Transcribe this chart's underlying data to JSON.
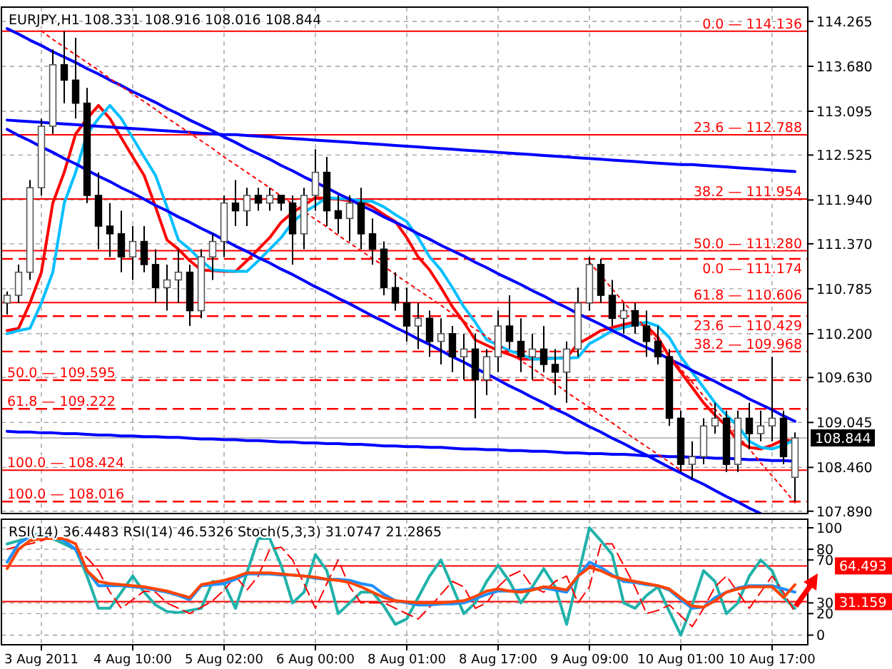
{
  "chart_data": [
    {
      "type": "candlestick",
      "title": "EURJPY,H1  108.331 108.916 108.016 108.844",
      "categories": [
        null,
        null,
        null,
        null,
        null,
        null,
        null,
        null,
        null,
        null,
        null,
        null,
        null,
        null,
        null,
        null,
        null,
        null,
        null,
        null,
        null,
        null,
        null,
        null,
        null,
        null,
        null,
        null,
        null,
        null,
        null,
        null,
        null,
        null,
        null,
        null,
        null,
        null,
        null,
        null,
        null,
        null,
        null,
        null,
        null,
        null,
        null,
        null,
        null,
        null,
        null,
        null,
        null,
        null,
        null,
        null,
        null,
        null,
        null,
        null,
        null,
        null,
        null,
        null,
        null,
        null,
        null,
        null,
        null,
        null
      ],
      "ohlc": [
        [
          110.6,
          110.75,
          110.45,
          110.7
        ],
        [
          110.7,
          111.1,
          110.6,
          111.0
        ],
        [
          111.0,
          112.2,
          110.9,
          112.1
        ],
        [
          112.1,
          113.0,
          112.0,
          112.9
        ],
        [
          112.9,
          113.9,
          112.8,
          113.7
        ],
        [
          113.7,
          114.136,
          113.2,
          113.5
        ],
        [
          113.5,
          114.05,
          113.0,
          113.2
        ],
        [
          113.2,
          113.4,
          111.9,
          112.0
        ],
        [
          112.0,
          112.3,
          111.3,
          111.6
        ],
        [
          111.6,
          111.9,
          111.2,
          111.5
        ],
        [
          111.5,
          111.8,
          111.0,
          111.2
        ],
        [
          111.2,
          111.6,
          110.9,
          111.4
        ],
        [
          111.4,
          111.6,
          111.0,
          111.1
        ],
        [
          111.1,
          111.3,
          110.6,
          110.8
        ],
        [
          110.8,
          111.1,
          110.5,
          110.9
        ],
        [
          110.9,
          111.3,
          110.6,
          111.0
        ],
        [
          111.0,
          111.1,
          110.3,
          110.5
        ],
        [
          110.5,
          111.3,
          110.4,
          111.2
        ],
        [
          111.2,
          111.5,
          110.9,
          111.4
        ],
        [
          111.4,
          112.0,
          111.2,
          111.9
        ],
        [
          111.9,
          112.2,
          111.6,
          111.8
        ],
        [
          111.8,
          112.1,
          111.6,
          112.0
        ],
        [
          112.0,
          112.1,
          111.8,
          111.9
        ],
        [
          111.9,
          112.1,
          111.8,
          112.0
        ],
        [
          112.0,
          112.0,
          111.8,
          111.9
        ],
        [
          111.9,
          112.0,
          111.1,
          111.5
        ],
        [
          111.5,
          112.1,
          111.3,
          112.0
        ],
        [
          112.0,
          112.6,
          111.8,
          112.3
        ],
        [
          112.3,
          112.5,
          111.6,
          111.8
        ],
        [
          111.8,
          112.0,
          111.5,
          111.7
        ],
        [
          111.7,
          112.0,
          111.4,
          111.9
        ],
        [
          111.9,
          112.1,
          111.3,
          111.5
        ],
        [
          111.5,
          111.7,
          111.1,
          111.3
        ],
        [
          111.3,
          111.4,
          110.7,
          110.8
        ],
        [
          110.8,
          111.0,
          110.5,
          110.6
        ],
        [
          110.6,
          110.8,
          110.1,
          110.3
        ],
        [
          110.3,
          110.6,
          110.0,
          110.4
        ],
        [
          110.4,
          110.5,
          109.9,
          110.1
        ],
        [
          110.1,
          110.4,
          109.8,
          110.2
        ],
        [
          110.2,
          110.3,
          109.7,
          109.9
        ],
        [
          109.9,
          110.2,
          109.6,
          110.0
        ],
        [
          110.0,
          110.2,
          109.1,
          109.6
        ],
        [
          109.6,
          110.0,
          109.4,
          109.9
        ],
        [
          109.9,
          110.5,
          109.7,
          110.3
        ],
        [
          110.3,
          110.7,
          110.0,
          110.1
        ],
        [
          110.1,
          110.4,
          109.7,
          109.9
        ],
        [
          109.9,
          110.2,
          109.6,
          110.0
        ],
        [
          110.0,
          110.3,
          109.7,
          109.8
        ],
        [
          109.8,
          110.0,
          109.4,
          109.7
        ],
        [
          109.7,
          110.1,
          109.3,
          110.0
        ],
        [
          110.0,
          110.8,
          109.9,
          110.6
        ],
        [
          110.6,
          111.2,
          110.5,
          111.1
        ],
        [
          111.1,
          111.174,
          110.6,
          110.7
        ],
        [
          110.7,
          110.9,
          110.3,
          110.4
        ],
        [
          110.4,
          110.6,
          110.2,
          110.5
        ],
        [
          110.5,
          110.6,
          110.2,
          110.3
        ],
        [
          110.3,
          110.5,
          109.9,
          110.1
        ],
        [
          110.1,
          110.3,
          109.8,
          109.9
        ],
        [
          109.9,
          110.0,
          109.0,
          109.1
        ],
        [
          109.1,
          109.2,
          108.4,
          108.5
        ],
        [
          108.5,
          108.8,
          108.3,
          108.6
        ],
        [
          108.6,
          109.1,
          108.5,
          109.0
        ],
        [
          109.0,
          109.3,
          108.9,
          109.1
        ],
        [
          109.1,
          109.2,
          108.4,
          108.5
        ],
        [
          108.5,
          109.2,
          108.4,
          109.1
        ],
        [
          109.1,
          109.3,
          108.7,
          108.9
        ],
        [
          108.9,
          109.2,
          108.8,
          109.0
        ],
        [
          109.0,
          109.9,
          108.8,
          109.1
        ],
        [
          109.1,
          109.2,
          108.5,
          108.6
        ],
        [
          108.331,
          108.916,
          108.016,
          108.844
        ]
      ],
      "ylim": [
        107.86,
        114.45
      ],
      "yticks": [
        {
          "value": 114.265,
          "label": "114.265"
        },
        {
          "value": 113.68,
          "label": "113.680"
        },
        {
          "value": 113.095,
          "label": "113.095"
        },
        {
          "value": 112.525,
          "label": "112.525"
        },
        {
          "value": 111.94,
          "label": "111.940"
        },
        {
          "value": 111.37,
          "label": "111.370"
        },
        {
          "value": 110.785,
          "label": "110.785"
        },
        {
          "value": 110.2,
          "label": "110.200"
        },
        {
          "value": 109.63,
          "label": "109.630"
        },
        {
          "value": 109.045,
          "label": "109.045"
        },
        {
          "value": 108.46,
          "label": "108.460"
        },
        {
          "value": 107.89,
          "label": "107.890"
        }
      ],
      "tick_labels": "y",
      "grid": true,
      "series": [
        {
          "type": "line",
          "color": "#ff0000",
          "values": [
            110.24,
            110.27,
            110.6,
            111.0,
            111.9,
            112.3,
            112.8,
            113.0,
            113.17,
            113.0,
            112.75,
            112.5,
            112.26,
            111.85,
            111.42,
            111.3,
            111.15,
            111.03,
            111.02,
            111.01,
            111.01,
            111.15,
            111.3,
            111.45,
            111.65,
            111.78,
            111.87,
            111.97,
            111.96,
            111.95,
            111.93,
            111.92,
            111.85,
            111.75,
            111.66,
            111.45,
            111.2,
            111.03,
            110.8,
            110.55,
            110.35,
            110.12,
            110.05,
            109.98,
            109.93,
            109.87,
            109.87,
            109.88,
            109.88,
            109.89,
            110.07,
            110.15,
            110.24,
            110.28,
            110.32,
            110.35,
            110.3,
            110.15,
            109.9,
            109.7,
            109.5,
            109.3,
            109.14,
            109.0,
            108.8,
            108.72,
            108.7,
            108.75,
            108.82,
            108.8
          ]
        },
        {
          "type": "line",
          "color": "#00bfff",
          "values": [
            110.2,
            110.24,
            110.27,
            110.6,
            111.0,
            111.9,
            112.3,
            112.8,
            113.0,
            113.17,
            113.0,
            112.75,
            112.5,
            112.26,
            111.85,
            111.42,
            111.3,
            111.15,
            111.03,
            111.02,
            111.01,
            111.01,
            111.15,
            111.3,
            111.45,
            111.65,
            111.78,
            111.87,
            111.97,
            111.96,
            111.95,
            111.93,
            111.92,
            111.85,
            111.75,
            111.66,
            111.45,
            111.2,
            111.03,
            110.8,
            110.55,
            110.35,
            110.12,
            110.05,
            109.98,
            109.93,
            109.87,
            109.87,
            109.88,
            109.88,
            109.89,
            110.07,
            110.15,
            110.24,
            110.28,
            110.32,
            110.35,
            110.3,
            110.15,
            109.9,
            109.7,
            109.5,
            109.3,
            109.14,
            109.0,
            108.8,
            108.72,
            108.7,
            108.75,
            108.82
          ]
        },
        {
          "type": "line",
          "color": "#0000ff",
          "values": [
            114.17,
            114.1,
            114.02,
            113.95,
            113.87,
            113.8,
            113.73,
            113.65,
            113.58,
            113.5,
            113.43,
            113.35,
            113.28,
            113.21,
            113.13,
            113.06,
            112.98,
            112.91,
            112.84,
            112.76,
            112.69,
            112.61,
            112.54,
            112.47,
            112.39,
            112.32,
            112.24,
            112.17,
            112.1,
            112.02,
            111.95,
            111.87,
            111.8,
            111.72,
            111.65,
            111.58,
            111.5,
            111.43,
            111.35,
            111.28,
            111.21,
            111.13,
            111.06,
            110.98,
            110.91,
            110.84,
            110.76,
            110.69,
            110.61,
            110.54,
            110.46,
            110.39,
            110.32,
            110.24,
            110.17,
            110.09,
            110.02,
            109.95,
            109.87,
            109.8,
            109.72,
            109.65,
            109.58,
            109.5,
            109.43,
            109.35,
            109.28,
            109.21,
            109.13,
            109.06
          ]
        },
        {
          "type": "line",
          "color": "#0000ff",
          "values": [
            112.86,
            112.78,
            112.71,
            112.63,
            112.56,
            112.48,
            112.41,
            112.33,
            112.25,
            112.18,
            112.1,
            112.03,
            111.95,
            111.87,
            111.8,
            111.72,
            111.65,
            111.57,
            111.5,
            111.42,
            111.34,
            111.27,
            111.19,
            111.12,
            111.04,
            110.97,
            110.89,
            110.81,
            110.74,
            110.66,
            110.59,
            110.51,
            110.43,
            110.36,
            110.28,
            110.21,
            110.13,
            110.06,
            109.98,
            109.9,
            109.83,
            109.75,
            109.68,
            109.6,
            109.52,
            109.45,
            109.37,
            109.3,
            109.22,
            109.15,
            109.07,
            108.99,
            108.92,
            108.84,
            108.77,
            108.69,
            108.62,
            108.54,
            108.46,
            108.39,
            108.31,
            108.24,
            108.16,
            108.08,
            108.01,
            107.93,
            107.86,
            null,
            null,
            null
          ]
        },
        {
          "type": "line",
          "color": "#0000ff",
          "values": [
            112.98,
            112.97,
            112.96,
            112.95,
            112.94,
            112.93,
            112.92,
            112.91,
            112.9,
            112.89,
            112.88,
            112.87,
            112.86,
            112.85,
            112.84,
            112.83,
            112.82,
            112.81,
            112.8,
            112.79,
            112.79,
            112.78,
            112.77,
            112.76,
            112.75,
            112.74,
            112.73,
            112.72,
            112.71,
            112.7,
            112.69,
            112.68,
            112.67,
            112.66,
            112.65,
            112.64,
            112.63,
            112.62,
            112.61,
            112.6,
            112.59,
            112.58,
            112.57,
            112.56,
            112.55,
            112.54,
            112.53,
            112.52,
            112.51,
            112.5,
            112.49,
            112.48,
            112.47,
            112.46,
            112.45,
            112.44,
            112.43,
            112.42,
            112.41,
            112.4,
            112.4,
            112.39,
            112.38,
            112.37,
            112.36,
            112.35,
            112.34,
            112.33,
            112.32,
            112.31
          ]
        },
        {
          "type": "line",
          "color": "#0000ff",
          "values": [
            108.93,
            108.92,
            108.92,
            108.91,
            108.91,
            108.9,
            108.9,
            108.89,
            108.88,
            108.88,
            108.87,
            108.87,
            108.86,
            108.86,
            108.85,
            108.85,
            108.84,
            108.83,
            108.83,
            108.82,
            108.82,
            108.81,
            108.81,
            108.8,
            108.79,
            108.79,
            108.78,
            108.78,
            108.77,
            108.77,
            108.76,
            108.76,
            108.75,
            108.74,
            108.74,
            108.73,
            108.73,
            108.72,
            108.72,
            108.71,
            108.7,
            108.7,
            108.69,
            108.69,
            108.68,
            108.68,
            108.67,
            108.67,
            108.66,
            108.65,
            108.65,
            108.64,
            108.64,
            108.63,
            108.63,
            108.62,
            108.61,
            108.61,
            108.6,
            108.6,
            108.59,
            108.59,
            108.58,
            108.58,
            108.57,
            108.56,
            108.56,
            108.55,
            108.55,
            108.54
          ]
        },
        {
          "type": "line",
          "color": "#ff0000",
          "line_style": "dotted",
          "values": [
            null,
            null,
            null,
            114.14,
            114.03,
            113.93,
            113.83,
            113.73,
            113.63,
            113.52,
            113.42,
            113.32,
            113.22,
            113.12,
            113.01,
            112.91,
            112.81,
            112.71,
            112.61,
            112.5,
            112.4,
            112.3,
            112.2,
            112.1,
            111.99,
            111.89,
            111.79,
            111.69,
            111.59,
            111.48,
            111.38,
            111.28,
            111.18,
            111.08,
            110.97,
            110.87,
            110.77,
            110.67,
            110.57,
            110.46,
            110.36,
            110.26,
            110.16,
            110.06,
            109.95,
            109.85,
            109.75,
            109.65,
            109.55,
            109.44,
            109.34,
            109.24,
            109.14,
            109.04,
            108.93,
            108.83,
            108.73,
            108.63,
            108.53,
            108.42,
            null,
            null,
            null,
            null,
            null,
            null,
            null,
            null,
            null,
            null
          ]
        },
        {
          "type": "line",
          "color": "#ff0000",
          "line_style": "dotted",
          "values": [
            null,
            null,
            null,
            null,
            null,
            null,
            null,
            null,
            null,
            null,
            null,
            null,
            null,
            null,
            null,
            null,
            null,
            null,
            null,
            null,
            null,
            null,
            null,
            null,
            null,
            null,
            null,
            null,
            null,
            null,
            null,
            null,
            null,
            null,
            null,
            null,
            null,
            null,
            null,
            null,
            null,
            null,
            null,
            null,
            null,
            null,
            null,
            null,
            null,
            null,
            null,
            111.13,
            110.96,
            110.78,
            110.61,
            110.44,
            110.26,
            110.09,
            109.91,
            109.74,
            109.57,
            109.39,
            109.22,
            109.05,
            108.87,
            108.7,
            108.52,
            108.35,
            108.18,
            108.0
          ]
        }
      ],
      "ref_lines": [
        {
          "axis": "y",
          "value": 114.136,
          "label": "0.0 — 114.136",
          "color": "#ff0000",
          "line_style": "solid"
        },
        {
          "axis": "y",
          "value": 112.788,
          "label": "23.6 — 112.788",
          "color": "#ff0000",
          "line_style": "solid"
        },
        {
          "axis": "y",
          "value": 111.954,
          "label": "38.2 — 111.954",
          "color": "#ff0000",
          "line_style": "solid"
        },
        {
          "axis": "y",
          "value": 111.28,
          "label": "50.0 — 111.280",
          "color": "#ff0000",
          "line_style": "solid"
        },
        {
          "axis": "y",
          "value": 111.174,
          "label": "0.0 — 111.174",
          "color": "#ff0000",
          "line_style": "dashed"
        },
        {
          "axis": "y",
          "value": 110.606,
          "label": "61.8 — 110.606",
          "color": "#ff0000",
          "line_style": "solid"
        },
        {
          "axis": "y",
          "value": 110.429,
          "label": "23.6 — 110.429",
          "color": "#ff0000",
          "line_style": "dashed"
        },
        {
          "axis": "y",
          "value": 109.968,
          "label": "38.2 — 109.968",
          "color": "#ff0000",
          "line_style": "dashed"
        },
        {
          "axis": "y",
          "value": 109.595,
          "label": "50.0 — 109.595",
          "color": "#ff0000",
          "line_style": "dashed"
        },
        {
          "axis": "y",
          "value": 109.222,
          "label": "61.8 — 109.222",
          "color": "#ff0000",
          "line_style": "dashed"
        },
        {
          "axis": "y",
          "value": 108.424,
          "label": "100.0 — 108.424",
          "color": "#ff0000",
          "line_style": "solid"
        },
        {
          "axis": "y",
          "value": 108.016,
          "label": "100.0 — 108.016",
          "color": "#ff0000",
          "line_style": "dashed"
        },
        {
          "axis": "y",
          "value": 108.844,
          "label": "108.844",
          "color": "#c0c0c0"
        }
      ]
    },
    {
      "type": "line",
      "title": "RSI(14) 36.4483  RSI(14) 46.5326  Stoch(5,3,3) 31.0747 21.2865",
      "categories": [
        null,
        null,
        null,
        "3 Aug 2011",
        null,
        null,
        null,
        null,
        null,
        null,
        null,
        "4 Aug 10:00",
        null,
        null,
        null,
        null,
        null,
        null,
        null,
        "5 Aug 02:00",
        null,
        null,
        null,
        null,
        null,
        null,
        null,
        "6 Aug 00:00",
        null,
        null,
        null,
        null,
        null,
        null,
        null,
        "8 Aug 01:00",
        null,
        null,
        null,
        null,
        null,
        null,
        null,
        "8 Aug 17:00",
        null,
        null,
        null,
        null,
        null,
        null,
        null,
        "9 Aug 09:00",
        null,
        null,
        null,
        null,
        null,
        null,
        null,
        "10 Aug 01:00",
        null,
        null,
        null,
        null,
        null,
        null,
        null,
        "10 Aug 17:00",
        null,
        null
      ],
      "ylim": [
        -9,
        108
      ],
      "yticks": [
        0,
        20,
        30,
        70,
        80,
        100
      ],
      "grid": true,
      "series": [
        {
          "type": "line",
          "color": "#20b2aa",
          "values": [
            85,
            88,
            92,
            95,
            90,
            85,
            80,
            55,
            25,
            25,
            40,
            55,
            40,
            28,
            22,
            21,
            23,
            25,
            50,
            48,
            25,
            58,
            90,
            90,
            65,
            30,
            40,
            75,
            60,
            20,
            30,
            40,
            40,
            27,
            10,
            15,
            35,
            55,
            70,
            45,
            20,
            30,
            50,
            65,
            50,
            30,
            45,
            62,
            45,
            10,
            55,
            100,
            88,
            75,
            30,
            25,
            37,
            45,
            22,
            0,
            28,
            60,
            50,
            20,
            30,
            55,
            70,
            60,
            35,
            25
          ]
        },
        {
          "type": "line",
          "color": "#ff0000",
          "line_style": "dashed",
          "values": [
            80,
            83,
            85,
            88,
            91,
            88,
            80,
            72,
            60,
            40,
            25,
            33,
            41,
            40,
            30,
            25,
            20,
            26,
            32,
            42,
            55,
            42,
            55,
            80,
            82,
            70,
            48,
            25,
            48,
            70,
            45,
            30,
            30,
            30,
            25,
            20,
            15,
            26,
            38,
            50,
            45,
            25,
            30,
            45,
            55,
            60,
            45,
            40,
            50,
            55,
            30,
            45,
            85,
            85,
            65,
            45,
            20,
            23,
            28,
            18,
            8,
            25,
            45,
            55,
            40,
            25,
            40,
            55,
            40,
            21
          ]
        },
        {
          "type": "line",
          "color": "#1e90ff",
          "values": [
            68,
            85,
            92,
            92,
            92,
            88,
            80,
            60,
            46,
            46,
            46,
            45,
            44,
            42,
            40,
            37,
            33,
            46,
            47,
            48,
            52,
            57,
            57,
            57,
            56,
            56,
            55,
            53,
            52,
            52,
            51,
            48,
            46,
            38,
            32,
            30,
            28,
            28,
            29,
            29,
            30,
            34,
            38,
            41,
            41,
            42,
            43,
            44,
            42,
            40,
            55,
            68,
            63,
            56,
            50,
            49,
            47,
            46,
            42,
            33,
            25,
            26,
            35,
            40,
            44,
            46,
            46,
            46,
            43,
            40
          ]
        },
        {
          "type": "line",
          "color": "#ff4500",
          "values": [
            62,
            80,
            88,
            90,
            90,
            90,
            85,
            60,
            50,
            48,
            47,
            46,
            45,
            43,
            41,
            38,
            35,
            47,
            49,
            51,
            54,
            58,
            58,
            58,
            57,
            56,
            55,
            54,
            52,
            51,
            49,
            45,
            40,
            35,
            32,
            31,
            30,
            30,
            30,
            31,
            32,
            36,
            41,
            43,
            41,
            40,
            42,
            45,
            44,
            42,
            55,
            63,
            60,
            55,
            52,
            50,
            48,
            46,
            43,
            35,
            27,
            26,
            32,
            40,
            43,
            45,
            45,
            45,
            35,
            47
          ]
        }
      ],
      "ref_lines": [
        {
          "axis": "y",
          "value": 64.493,
          "label": "64.493",
          "color": "#ff0000"
        },
        {
          "axis": "y",
          "value": 31.159,
          "label": "31.159",
          "color": "#ff0000"
        }
      ]
    }
  ]
}
